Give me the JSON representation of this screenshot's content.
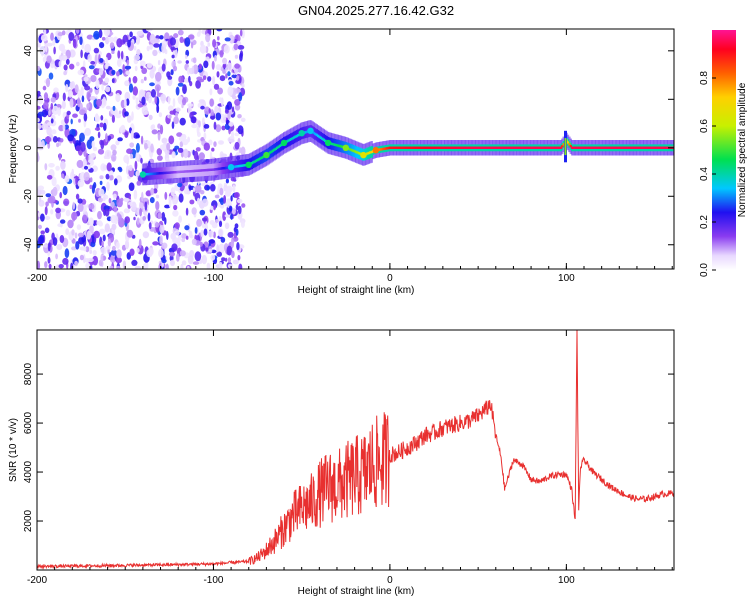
{
  "title": "GN04.2025.277.16.42.G32",
  "chart_data": [
    {
      "type": "heatmap",
      "name": "spectrogram",
      "xlabel": "Height of straight line (km)",
      "ylabel": "Frequency (Hz)",
      "xlim": [
        -200,
        161
      ],
      "ylim": [
        -50,
        49
      ],
      "xticks": [
        -200,
        -100,
        0,
        100
      ],
      "yticks": [
        -40,
        -20,
        0,
        20,
        40
      ],
      "colorbar": {
        "label": "Normalized spectral amplitude",
        "range": [
          0.0,
          1.0
        ],
        "ticks": [
          0.0,
          0.2,
          0.4,
          0.6,
          0.8
        ]
      },
      "noise_region_x": [
        -200,
        -83
      ],
      "ridge": [
        {
          "x": -140,
          "y": -11,
          "amp": 0.35
        },
        {
          "x": -120,
          "y": -10,
          "amp": 0.12
        },
        {
          "x": -100,
          "y": -9,
          "amp": 0.15
        },
        {
          "x": -90,
          "y": -8,
          "amp": 0.3
        },
        {
          "x": -80,
          "y": -7,
          "amp": 0.4
        },
        {
          "x": -70,
          "y": -3,
          "amp": 0.45
        },
        {
          "x": -60,
          "y": 2,
          "amp": 0.4
        },
        {
          "x": -50,
          "y": 6,
          "amp": 0.35
        },
        {
          "x": -45,
          "y": 7,
          "amp": 0.3
        },
        {
          "x": -35,
          "y": 2,
          "amp": 0.4
        },
        {
          "x": -25,
          "y": 0,
          "amp": 0.5
        },
        {
          "x": -15,
          "y": -3,
          "amp": 0.6
        },
        {
          "x": -8,
          "y": -1,
          "amp": 0.75
        },
        {
          "x": 0,
          "y": 0,
          "amp": 0.9
        },
        {
          "x": 50,
          "y": 0,
          "amp": 0.95
        },
        {
          "x": 97,
          "y": 0,
          "amp": 0.95
        },
        {
          "x": 100,
          "y": 3,
          "amp": 0.6
        },
        {
          "x": 103,
          "y": 0,
          "amp": 0.95
        },
        {
          "x": 161,
          "y": 0,
          "amp": 0.95
        }
      ]
    },
    {
      "type": "line",
      "name": "snr",
      "xlabel": "Height of straight line (km)",
      "ylabel": "SNR (10 * v/v)",
      "xlim": [
        -200,
        161
      ],
      "ylim": [
        0,
        9800
      ],
      "xticks": [
        -200,
        -100,
        0,
        100
      ],
      "yticks": [
        2000,
        4000,
        6000,
        8000
      ],
      "color": "#e8302f",
      "series": [
        {
          "name": "SNR",
          "x": [
            -200,
            -180,
            -160,
            -140,
            -120,
            -100,
            -90,
            -80,
            -75,
            -70,
            -65,
            -60,
            -55,
            -50,
            -45,
            -40,
            -35,
            -30,
            -25,
            -20,
            -15,
            -10,
            -5,
            0,
            5,
            10,
            15,
            20,
            25,
            30,
            35,
            40,
            45,
            50,
            55,
            57,
            60,
            63,
            65,
            70,
            75,
            80,
            85,
            90,
            95,
            100,
            103,
            105,
            106,
            107,
            108,
            110,
            115,
            120,
            125,
            130,
            135,
            140,
            145,
            150,
            155,
            161
          ],
          "y": [
            150,
            160,
            180,
            200,
            220,
            250,
            300,
            350,
            500,
            800,
            1200,
            1700,
            2200,
            2500,
            2700,
            3100,
            3400,
            3400,
            3600,
            3800,
            3900,
            4300,
            4400,
            4700,
            4800,
            5000,
            5200,
            5500,
            5600,
            5800,
            5900,
            6000,
            6100,
            6300,
            6600,
            6800,
            5500,
            4600,
            3300,
            4500,
            4300,
            3700,
            3600,
            3800,
            3900,
            3900,
            3300,
            2000,
            9800,
            2500,
            4200,
            4500,
            4000,
            3700,
            3400,
            3200,
            3000,
            2900,
            2900,
            3000,
            3100,
            3150
          ]
        }
      ]
    }
  ]
}
